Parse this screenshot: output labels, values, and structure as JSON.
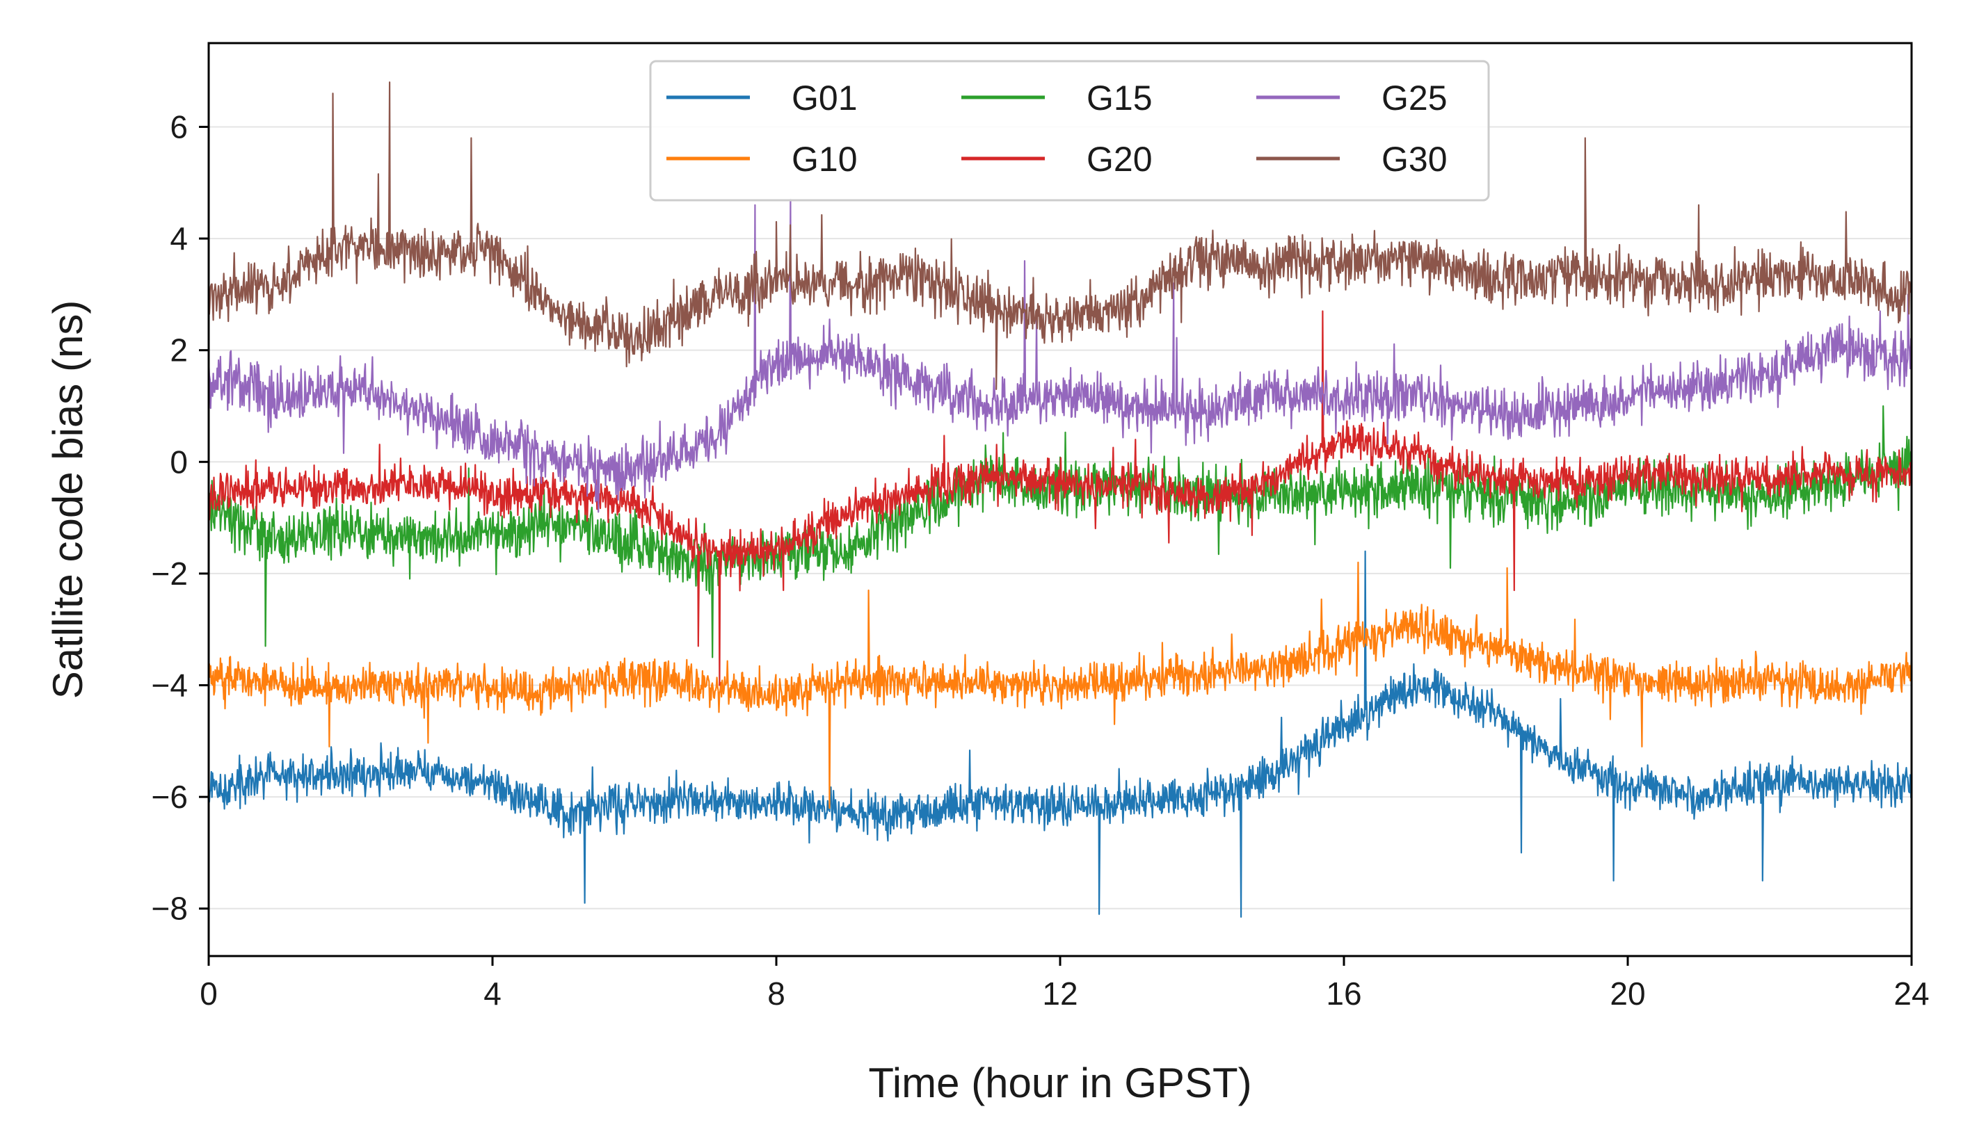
{
  "chart_data": {
    "type": "line",
    "title": "",
    "xlabel": "Time (hour in GPST)",
    "ylabel": "Satllite code bias (ns)",
    "xlim": [
      0,
      24
    ],
    "ylim": [
      -8.85,
      7.5
    ],
    "xticks": [
      0,
      4,
      8,
      12,
      16,
      20,
      24
    ],
    "xtick_labels": [
      "0",
      "4",
      "8",
      "12",
      "16",
      "20",
      "24"
    ],
    "yticks": [
      -8,
      -6,
      -4,
      -2,
      0,
      2,
      4,
      6
    ],
    "ytick_labels": [
      "−8",
      "−6",
      "−4",
      "−2",
      "0",
      "2",
      "4",
      "6"
    ],
    "grid": "horizontal",
    "legend": {
      "position": "top-center",
      "columns": 3
    },
    "series": [
      {
        "name": "G01",
        "color": "#1f77b4",
        "noise_amplitude": 0.35,
        "spikes": [
          [
            5.3,
            -7.9
          ],
          [
            12.55,
            -8.1
          ],
          [
            14.55,
            -8.15
          ],
          [
            16.3,
            -1.6
          ],
          [
            18.5,
            -7.0
          ],
          [
            19.8,
            -7.5
          ],
          [
            21.9,
            -7.5
          ]
        ],
        "x": [
          0,
          1,
          2,
          3,
          4,
          5,
          6,
          7,
          8,
          9,
          10,
          11,
          12,
          13,
          14,
          15,
          16,
          17,
          18,
          19,
          20,
          21,
          22,
          23,
          24
        ],
        "values": [
          -5.9,
          -5.6,
          -5.6,
          -5.5,
          -5.8,
          -6.3,
          -6.1,
          -6.0,
          -6.1,
          -6.3,
          -6.3,
          -6.1,
          -6.2,
          -6.1,
          -6.0,
          -5.6,
          -4.7,
          -4.0,
          -4.4,
          -5.3,
          -5.8,
          -6.0,
          -5.7,
          -5.8,
          -5.8
        ]
      },
      {
        "name": "G10",
        "color": "#ff7f0e",
        "noise_amplitude": 0.35,
        "spikes": [
          [
            1.7,
            -5.1
          ],
          [
            8.75,
            -6.2
          ],
          [
            9.3,
            -2.3
          ],
          [
            16.2,
            -1.8
          ],
          [
            18.3,
            -1.9
          ],
          [
            20.2,
            -5.1
          ]
        ],
        "x": [
          0,
          1,
          2,
          3,
          4,
          5,
          6,
          7,
          8,
          9,
          10,
          11,
          12,
          13,
          14,
          15,
          16,
          17,
          18,
          19,
          20,
          21,
          22,
          23,
          24
        ],
        "values": [
          -3.8,
          -4.0,
          -4.0,
          -4.0,
          -4.1,
          -4.0,
          -3.9,
          -4.0,
          -4.2,
          -3.9,
          -3.9,
          -4.0,
          -4.0,
          -3.9,
          -3.8,
          -3.7,
          -3.3,
          -2.9,
          -3.3,
          -3.7,
          -3.9,
          -4.0,
          -3.9,
          -4.1,
          -3.7
        ]
      },
      {
        "name": "G15",
        "color": "#2ca02c",
        "noise_amplitude": 0.45,
        "spikes": [
          [
            0.8,
            -3.3
          ],
          [
            7.1,
            -3.5
          ],
          [
            17.5,
            -1.9
          ],
          [
            23.6,
            1.0
          ]
        ],
        "x": [
          0,
          1,
          2,
          3,
          4,
          5,
          6,
          7,
          8,
          9,
          10,
          11,
          12,
          13,
          14,
          15,
          16,
          17,
          18,
          19,
          20,
          21,
          22,
          23,
          24
        ],
        "values": [
          -0.8,
          -1.4,
          -1.2,
          -1.4,
          -1.3,
          -1.1,
          -1.5,
          -1.9,
          -1.6,
          -1.6,
          -0.8,
          -0.3,
          -0.5,
          -0.4,
          -0.6,
          -0.6,
          -0.5,
          -0.4,
          -0.6,
          -0.7,
          -0.5,
          -0.5,
          -0.6,
          -0.3,
          0.0
        ]
      },
      {
        "name": "G20",
        "color": "#d62728",
        "noise_amplitude": 0.35,
        "spikes": [
          [
            6.9,
            -3.3
          ],
          [
            7.2,
            -4.0
          ],
          [
            8.1,
            -2.3
          ],
          [
            15.7,
            2.7
          ],
          [
            18.4,
            -2.3
          ]
        ],
        "x": [
          0,
          1,
          2,
          3,
          4,
          5,
          6,
          7,
          8,
          9,
          10,
          11,
          12,
          13,
          14,
          15,
          16,
          17,
          18,
          19,
          20,
          21,
          22,
          23,
          24
        ],
        "values": [
          -0.6,
          -0.4,
          -0.5,
          -0.4,
          -0.6,
          -0.5,
          -0.7,
          -1.6,
          -1.6,
          -0.9,
          -0.5,
          -0.3,
          -0.4,
          -0.4,
          -0.7,
          -0.3,
          0.4,
          0.2,
          -0.3,
          -0.4,
          -0.2,
          -0.3,
          -0.3,
          -0.2,
          -0.2
        ]
      },
      {
        "name": "G25",
        "color": "#9467bd",
        "noise_amplitude": 0.45,
        "spikes": [
          [
            7.7,
            4.6
          ],
          [
            8.2,
            4.7
          ],
          [
            11.5,
            3.6
          ],
          [
            13.6,
            3.2
          ],
          [
            23.95,
            3.0
          ]
        ],
        "x": [
          0,
          1,
          2,
          3,
          4,
          5,
          6,
          7,
          8,
          9,
          10,
          11,
          12,
          13,
          14,
          15,
          16,
          17,
          18,
          19,
          20,
          21,
          22,
          23,
          24
        ],
        "values": [
          1.6,
          1.1,
          1.3,
          0.9,
          0.4,
          0.0,
          -0.2,
          0.3,
          1.8,
          1.9,
          1.4,
          1.0,
          1.2,
          1.0,
          0.9,
          1.3,
          1.1,
          1.2,
          0.9,
          0.9,
          1.2,
          1.3,
          1.6,
          2.1,
          1.8
        ]
      },
      {
        "name": "G30",
        "color": "#8c564b",
        "noise_amplitude": 0.45,
        "spikes": [
          [
            1.75,
            6.6
          ],
          [
            2.55,
            6.8
          ],
          [
            3.7,
            5.8
          ],
          [
            8.0,
            4.3
          ],
          [
            11.1,
            1.3
          ],
          [
            19.4,
            5.8
          ],
          [
            21.0,
            4.6
          ]
        ],
        "x": [
          0,
          1,
          2,
          3,
          4,
          5,
          6,
          7,
          8,
          9,
          10,
          11,
          12,
          13,
          14,
          15,
          16,
          17,
          18,
          19,
          20,
          21,
          22,
          23,
          24
        ],
        "values": [
          3.0,
          3.2,
          3.9,
          3.7,
          3.8,
          2.6,
          2.2,
          2.9,
          3.2,
          3.2,
          3.3,
          2.8,
          2.5,
          2.8,
          3.7,
          3.5,
          3.6,
          3.6,
          3.3,
          3.4,
          3.3,
          3.2,
          3.3,
          3.3,
          3.0
        ]
      }
    ]
  }
}
